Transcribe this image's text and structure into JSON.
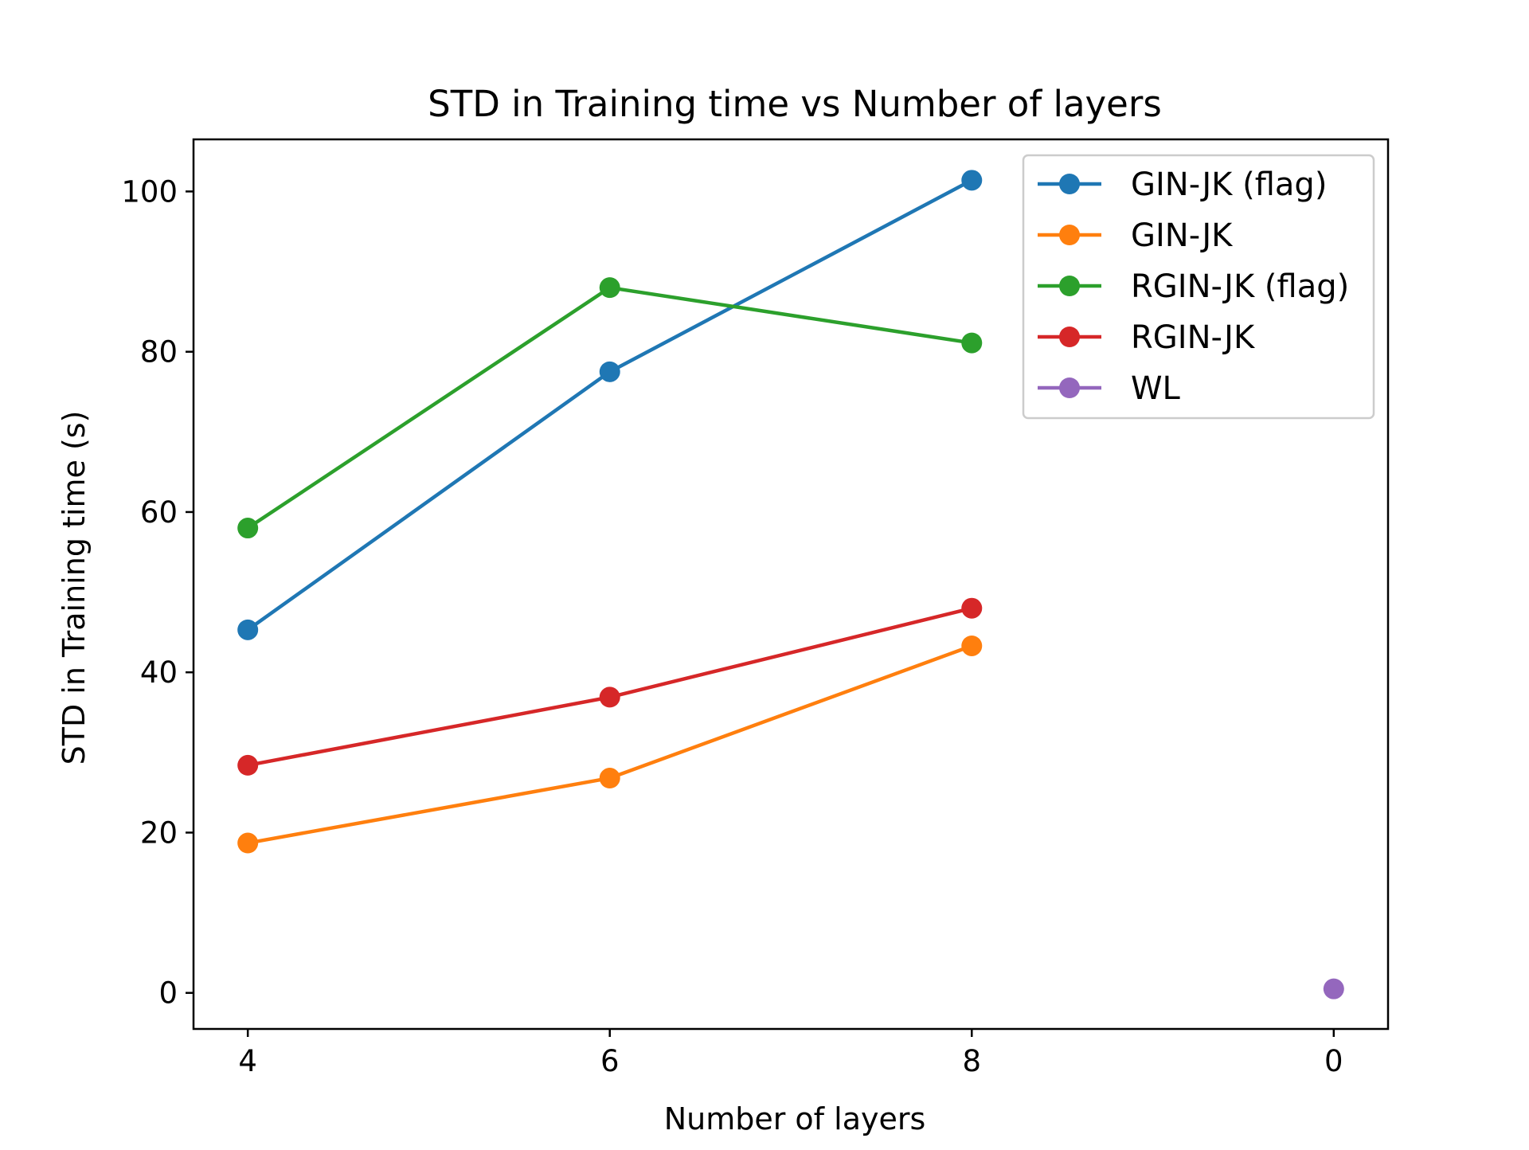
{
  "chart_data": {
    "type": "line",
    "title": "STD in Training time vs Number of layers",
    "xlabel": "Number of layers",
    "ylabel": "STD in Training time (s)",
    "categories": [
      "4",
      "6",
      "8",
      "0"
    ],
    "yticks": [
      0,
      20,
      40,
      60,
      80,
      100
    ],
    "ylim": [
      -4.5,
      106.5
    ],
    "grid": false,
    "legend_position": "top-right",
    "series": [
      {
        "name": "GIN-JK (flag)",
        "color": "#1f77b4",
        "values": [
          45.3,
          77.5,
          101.4,
          null
        ]
      },
      {
        "name": "GIN-JK",
        "color": "#ff7f0e",
        "values": [
          18.7,
          26.8,
          43.3,
          null
        ]
      },
      {
        "name": "RGIN-JK (flag)",
        "color": "#2ca02c",
        "values": [
          58.0,
          88.0,
          81.1,
          null
        ]
      },
      {
        "name": "RGIN-JK",
        "color": "#d62728",
        "values": [
          28.4,
          36.9,
          48.0,
          null
        ]
      },
      {
        "name": "WL",
        "color": "#9467bd",
        "values": [
          null,
          null,
          null,
          0.5
        ]
      }
    ]
  }
}
